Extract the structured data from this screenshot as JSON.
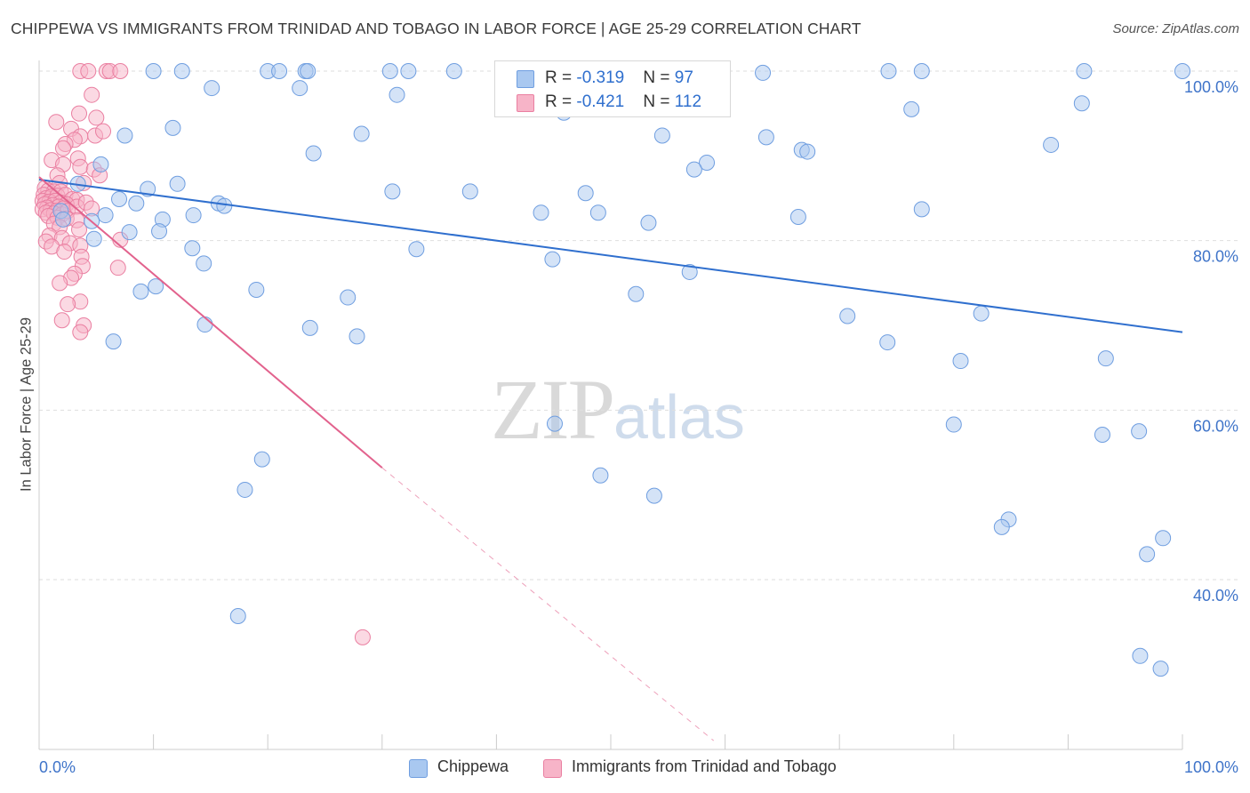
{
  "header": {
    "title": "CHIPPEWA VS IMMIGRANTS FROM TRINIDAD AND TOBAGO IN LABOR FORCE | AGE 25-29 CORRELATION CHART",
    "source": "Source: ZipAtlas.com"
  },
  "watermark": {
    "zip": "ZIP",
    "atlas": "atlas"
  },
  "legend": {
    "rows": [
      {
        "r_label": "R = ",
        "r_value": "-0.319",
        "n_label": "N = ",
        "n_value": "97"
      },
      {
        "r_label": "R = ",
        "r_value": "-0.421",
        "n_label": "N = ",
        "n_value": "112"
      }
    ]
  },
  "bottom_legend": {
    "series_a": "Chippewa",
    "series_b": "Immigrants from Trinidad and Tobago"
  },
  "colors": {
    "blue_fill": "#a9c8f0",
    "blue_stroke": "#6f9ee0",
    "blue_line": "#2f6fce",
    "pink_fill": "#f7b4c8",
    "pink_stroke": "#ea7fa1",
    "pink_line": "#e2628d",
    "tick_label": "#3f74c9",
    "grid": "#dedede"
  },
  "chart_data": {
    "type": "scatter",
    "title": "CHIPPEWA VS IMMIGRANTS FROM TRINIDAD AND TOBAGO IN LABOR FORCE | AGE 25-29 CORRELATION CHART",
    "xlabel": "",
    "ylabel": "In Labor Force | Age 25-29",
    "xlim": [
      0,
      100
    ],
    "ylim": [
      20,
      102
    ],
    "x_tick_labels": [
      "0.0%",
      "100.0%"
    ],
    "y_ticks": [
      40,
      60,
      80,
      100
    ],
    "y_tick_labels": [
      "40.0%",
      "60.0%",
      "80.0%",
      "100.0%"
    ],
    "grid": true,
    "legend_position": "top-center",
    "series": [
      {
        "name": "Chippewa",
        "color": "#a9c8f0",
        "trend": {
          "x": [
            0,
            100
          ],
          "y": [
            87.2,
            69.2
          ]
        },
        "points": [
          [
            10,
            100
          ],
          [
            12.5,
            100
          ],
          [
            20,
            100
          ],
          [
            21,
            100
          ],
          [
            23.3,
            100
          ],
          [
            23.5,
            100
          ],
          [
            30.7,
            100
          ],
          [
            32.3,
            100
          ],
          [
            36.3,
            100
          ],
          [
            74.3,
            100
          ],
          [
            77.2,
            100
          ],
          [
            91.4,
            100
          ],
          [
            100,
            100
          ],
          [
            15.1,
            98
          ],
          [
            22.8,
            98
          ],
          [
            31.3,
            97.2
          ],
          [
            91.2,
            96.2
          ],
          [
            76.3,
            95.5
          ],
          [
            45.9,
            95.1
          ],
          [
            63.3,
            99.8
          ],
          [
            11.7,
            93.3
          ],
          [
            7.5,
            92.4
          ],
          [
            28.2,
            92.6
          ],
          [
            54.5,
            92.4
          ],
          [
            63.6,
            92.2
          ],
          [
            88.5,
            91.3
          ],
          [
            66.7,
            90.7
          ],
          [
            67.2,
            90.5
          ],
          [
            24,
            90.3
          ],
          [
            5.4,
            89
          ],
          [
            58.4,
            89.2
          ],
          [
            57.3,
            88.4
          ],
          [
            3.4,
            86.7
          ],
          [
            12.1,
            86.7
          ],
          [
            9.5,
            86.1
          ],
          [
            30.9,
            85.8
          ],
          [
            37.7,
            85.8
          ],
          [
            47.8,
            85.6
          ],
          [
            7,
            84.9
          ],
          [
            8.5,
            84.4
          ],
          [
            15.7,
            84.4
          ],
          [
            16.2,
            84.1
          ],
          [
            77.2,
            83.7
          ],
          [
            43.9,
            83.3
          ],
          [
            48.9,
            83.3
          ],
          [
            1.9,
            83.5
          ],
          [
            2.1,
            82.5
          ],
          [
            5.8,
            83
          ],
          [
            10.8,
            82.5
          ],
          [
            13.5,
            83
          ],
          [
            66.4,
            82.8
          ],
          [
            53.3,
            82.1
          ],
          [
            4.6,
            82.3
          ],
          [
            10.5,
            81.1
          ],
          [
            7.9,
            81
          ],
          [
            4.8,
            80.2
          ],
          [
            13.4,
            79.1
          ],
          [
            33,
            79
          ],
          [
            44.9,
            77.8
          ],
          [
            14.4,
            77.3
          ],
          [
            56.9,
            76.3
          ],
          [
            10.2,
            74.6
          ],
          [
            8.9,
            74
          ],
          [
            19,
            74.2
          ],
          [
            52.2,
            73.7
          ],
          [
            27,
            73.3
          ],
          [
            82.4,
            71.4
          ],
          [
            70.7,
            71.1
          ],
          [
            14.5,
            70.1
          ],
          [
            23.7,
            69.7
          ],
          [
            27.8,
            68.7
          ],
          [
            6.5,
            68.1
          ],
          [
            74.2,
            68
          ],
          [
            80.6,
            65.8
          ],
          [
            93.3,
            66.1
          ],
          [
            45.1,
            58.4
          ],
          [
            80,
            58.3
          ],
          [
            93,
            57.1
          ],
          [
            96.2,
            57.5
          ],
          [
            19.5,
            54.2
          ],
          [
            49.1,
            52.3
          ],
          [
            18,
            50.6
          ],
          [
            53.8,
            49.9
          ],
          [
            84.8,
            47.1
          ],
          [
            84.2,
            46.2
          ],
          [
            98.3,
            44.9
          ],
          [
            96.9,
            43
          ],
          [
            17.4,
            35.7
          ],
          [
            96.3,
            31
          ],
          [
            98.1,
            29.5
          ]
        ]
      },
      {
        "name": "Immigrants from Trinidad and Tobago",
        "color": "#f7b4c8",
        "trend": {
          "x": [
            0,
            30
          ],
          "y": [
            87.5,
            53.2
          ]
        },
        "trend_dashed": {
          "x": [
            30,
            59
          ],
          "y": [
            53.2,
            21
          ]
        },
        "points": [
          [
            3.6,
            100
          ],
          [
            4.3,
            100
          ],
          [
            5.9,
            100
          ],
          [
            6.2,
            100
          ],
          [
            7.1,
            100
          ],
          [
            4.6,
            97.2
          ],
          [
            3.5,
            95
          ],
          [
            5,
            94.5
          ],
          [
            1.5,
            94
          ],
          [
            2.8,
            93.2
          ],
          [
            4.9,
            92.4
          ],
          [
            3.6,
            92.3
          ],
          [
            3.1,
            91.9
          ],
          [
            5.6,
            92.9
          ],
          [
            2.3,
            91.4
          ],
          [
            2.1,
            90.9
          ],
          [
            1.1,
            89.5
          ],
          [
            2.1,
            89
          ],
          [
            3.4,
            89.7
          ],
          [
            3.6,
            88.7
          ],
          [
            4.8,
            88.4
          ],
          [
            5.3,
            87.7
          ],
          [
            1.6,
            87.7
          ],
          [
            3.9,
            86.8
          ],
          [
            1.8,
            86.8
          ],
          [
            0.5,
            86.2
          ],
          [
            0.8,
            85.9
          ],
          [
            1.3,
            85.8
          ],
          [
            1.9,
            85.8
          ],
          [
            0.4,
            85.4
          ],
          [
            0.6,
            85
          ],
          [
            1.1,
            85.2
          ],
          [
            1.6,
            85.3
          ],
          [
            2.3,
            85.4
          ],
          [
            2.9,
            84.9
          ],
          [
            3.3,
            84.8
          ],
          [
            0.3,
            84.7
          ],
          [
            0.9,
            84.6
          ],
          [
            1.4,
            84.7
          ],
          [
            1.9,
            84.5
          ],
          [
            2.4,
            84.3
          ],
          [
            0.5,
            84.3
          ],
          [
            1.2,
            84.2
          ],
          [
            1.7,
            84
          ],
          [
            2.1,
            83.8
          ],
          [
            0.7,
            83.9
          ],
          [
            0.3,
            83.7
          ],
          [
            1,
            83.6
          ],
          [
            1.5,
            83.5
          ],
          [
            0.6,
            83.3
          ],
          [
            1.3,
            83.2
          ],
          [
            2,
            83.1
          ],
          [
            2.5,
            83.5
          ],
          [
            3.3,
            84
          ],
          [
            4.1,
            84.5
          ],
          [
            4.6,
            83.8
          ],
          [
            0.8,
            82.9
          ],
          [
            1.6,
            82.7
          ],
          [
            2.4,
            82.6
          ],
          [
            3.3,
            82.4
          ],
          [
            1.3,
            82
          ],
          [
            1.8,
            81.6
          ],
          [
            3.5,
            81.3
          ],
          [
            0.9,
            80.6
          ],
          [
            2,
            80.3
          ],
          [
            0.6,
            79.9
          ],
          [
            2.7,
            79.7
          ],
          [
            1.1,
            79.3
          ],
          [
            3.6,
            79.4
          ],
          [
            2.2,
            78.7
          ],
          [
            3.7,
            78.1
          ],
          [
            7.1,
            80.1
          ],
          [
            3.8,
            77
          ],
          [
            6.9,
            76.8
          ],
          [
            3.1,
            76.1
          ],
          [
            2.8,
            75.6
          ],
          [
            1.8,
            75
          ],
          [
            3.6,
            72.8
          ],
          [
            2.5,
            72.5
          ],
          [
            2,
            70.6
          ],
          [
            3.9,
            70
          ],
          [
            3.6,
            69.2
          ],
          [
            28.3,
            33.2
          ]
        ]
      }
    ]
  }
}
